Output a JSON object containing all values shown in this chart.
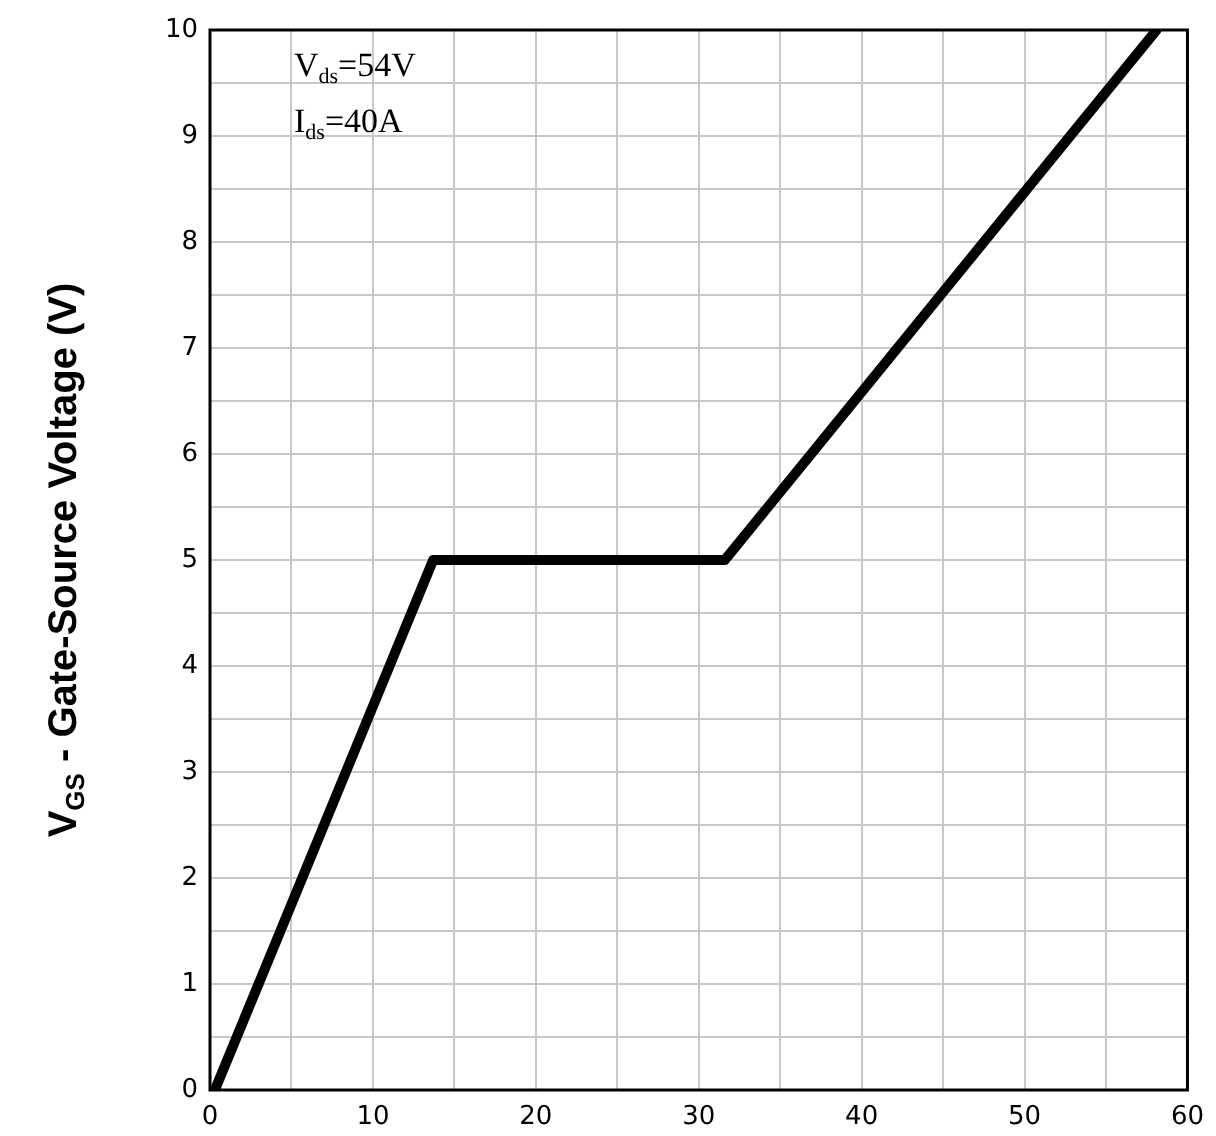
{
  "chart_data": {
    "type": "line",
    "ylabel": "V$_{GS}$ - Gate-Source Voltage (V)",
    "annotations": [
      "V$_{ds}$=54V",
      "I$_{ds}$=40A"
    ],
    "series": [
      {
        "color": "#000000",
        "x": [
          0.3,
          13.7,
          31.6,
          58.1
        ],
        "values": [
          0,
          5,
          5,
          10
        ]
      }
    ],
    "xlim": [
      0,
      60
    ],
    "xticks": [
      0,
      {
        "value": 5,
        "label": null
      },
      10,
      {
        "value": 15,
        "label": null
      },
      20,
      {
        "value": 25,
        "label": null
      },
      30,
      {
        "value": 35,
        "label": null
      },
      40,
      {
        "value": 45,
        "label": null
      },
      50,
      {
        "value": 55,
        "label": null
      },
      60
    ],
    "ylim": [
      0,
      10
    ],
    "yticks": [
      0,
      {
        "value": 0.5,
        "label": null
      },
      1,
      {
        "value": 1.5,
        "label": null
      },
      2,
      {
        "value": 2.5,
        "label": null
      },
      3,
      {
        "value": 3.5,
        "label": null
      },
      4,
      {
        "value": 4.5,
        "label": null
      },
      5,
      {
        "value": 5.5,
        "label": null
      },
      6,
      {
        "value": 6.5,
        "label": null
      },
      7,
      {
        "value": 7.5,
        "label": null
      },
      8,
      {
        "value": 8.5,
        "label": null
      },
      9,
      {
        "value": 9.5,
        "label": null
      },
      10
    ],
    "grid": true,
    "legend": false,
    "marker": "none",
    "line_style": "solid"
  }
}
